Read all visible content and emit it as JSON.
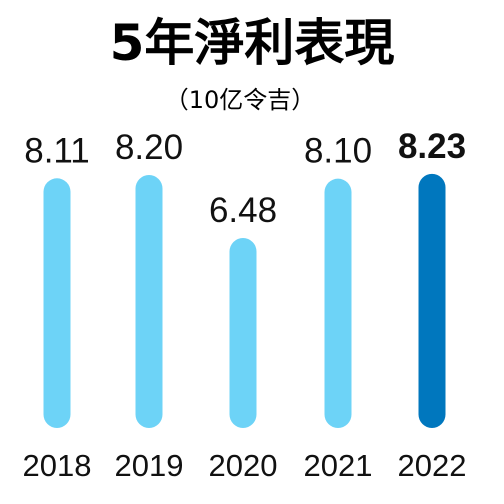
{
  "chart_data": {
    "type": "bar",
    "title": "5年淨利表現",
    "subtitle": "（10亿令吉）",
    "categories": [
      "2018",
      "2019",
      "2020",
      "2021",
      "2022"
    ],
    "values": [
      8.11,
      8.2,
      6.48,
      8.1,
      8.23
    ],
    "value_labels": [
      "8.11",
      "8.20",
      "6.48",
      "8.10",
      "8.23"
    ],
    "highlight_index": 4,
    "colors": {
      "bar": "#6DD3F7",
      "highlight": "#0077BE"
    },
    "grid": false,
    "legend": "none"
  }
}
